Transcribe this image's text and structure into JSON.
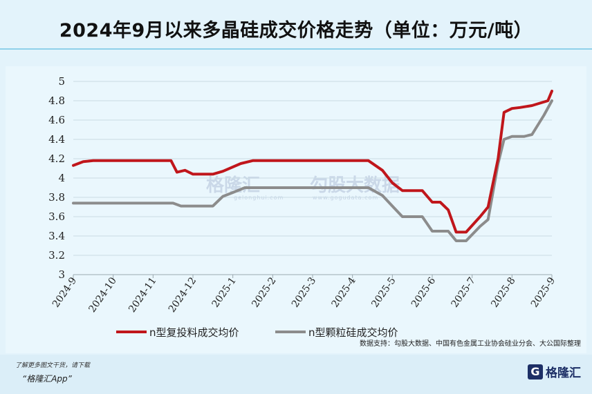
{
  "title": "2024年9月以来多晶硅成交价格走势（单位：万元/吨）",
  "source": "数据支持：勾股大数据、中国有色金属工业协会硅业分会、大公国际整理",
  "watermarks": {
    "left": "格隆汇",
    "left_sub": "gelonghui.com",
    "right": "勾股大数据",
    "right_sub": "www.gogudata.com"
  },
  "footer": {
    "tip": "了解更多图文干货，请下载",
    "app": "“格隆汇App”",
    "logo_mark": "G",
    "logo_name": "格隆汇"
  },
  "colors": {
    "series1": "#c0161b",
    "series2": "#8c8c8c",
    "grid": "#c9dbe4",
    "background": "#e3f3fb"
  },
  "chart_data": {
    "type": "line",
    "title": "2024年9月以来多晶硅成交价格走势（单位：万元/吨）",
    "xlabel": "",
    "ylabel": "",
    "ylim": [
      3,
      5
    ],
    "yticks": [
      "3",
      "3.2",
      "3.4",
      "3.6",
      "3.8",
      "4",
      "4.2",
      "4.4",
      "4.6",
      "4.8",
      "5"
    ],
    "categories": [
      "2024-9",
      "2024-10",
      "2024-11",
      "2024-12",
      "2025-1",
      "2025-2",
      "2025-3",
      "2025-4",
      "2025-5",
      "2025-6",
      "2025-7",
      "2025-8",
      "2025-9"
    ],
    "grid": true,
    "legend_position": "bottom",
    "series": [
      {
        "name": "n型复投料成交均价",
        "color": "#c0161b",
        "points": [
          [
            0,
            4.13
          ],
          [
            0.25,
            4.17
          ],
          [
            0.5,
            4.18
          ],
          [
            1.0,
            4.18
          ],
          [
            2.0,
            4.18
          ],
          [
            2.45,
            4.18
          ],
          [
            2.6,
            4.06
          ],
          [
            2.8,
            4.08
          ],
          [
            3.0,
            4.04
          ],
          [
            3.5,
            4.04
          ],
          [
            3.75,
            4.07
          ],
          [
            4.2,
            4.15
          ],
          [
            4.5,
            4.18
          ],
          [
            5.0,
            4.18
          ],
          [
            6.0,
            4.18
          ],
          [
            7.0,
            4.18
          ],
          [
            7.4,
            4.18
          ],
          [
            7.75,
            4.08
          ],
          [
            8.0,
            3.95
          ],
          [
            8.25,
            3.87
          ],
          [
            8.75,
            3.87
          ],
          [
            9.0,
            3.75
          ],
          [
            9.2,
            3.75
          ],
          [
            9.4,
            3.67
          ],
          [
            9.6,
            3.44
          ],
          [
            9.85,
            3.44
          ],
          [
            10.2,
            3.6
          ],
          [
            10.4,
            3.7
          ],
          [
            10.65,
            4.2
          ],
          [
            10.8,
            4.68
          ],
          [
            11.0,
            4.72
          ],
          [
            11.2,
            4.73
          ],
          [
            11.5,
            4.75
          ],
          [
            11.9,
            4.8
          ],
          [
            12.0,
            4.9
          ]
        ]
      },
      {
        "name": "n型颗粒硅成交均价",
        "color": "#8c8c8c",
        "points": [
          [
            0,
            3.74
          ],
          [
            0.5,
            3.74
          ],
          [
            1.0,
            3.74
          ],
          [
            2.0,
            3.74
          ],
          [
            2.5,
            3.74
          ],
          [
            2.7,
            3.71
          ],
          [
            3.0,
            3.71
          ],
          [
            3.5,
            3.71
          ],
          [
            3.75,
            3.81
          ],
          [
            4.0,
            3.85
          ],
          [
            4.3,
            3.9
          ],
          [
            5.0,
            3.9
          ],
          [
            6.0,
            3.9
          ],
          [
            7.0,
            3.9
          ],
          [
            7.4,
            3.9
          ],
          [
            7.75,
            3.82
          ],
          [
            8.0,
            3.71
          ],
          [
            8.25,
            3.6
          ],
          [
            8.75,
            3.6
          ],
          [
            9.0,
            3.45
          ],
          [
            9.4,
            3.45
          ],
          [
            9.6,
            3.35
          ],
          [
            9.85,
            3.35
          ],
          [
            10.2,
            3.5
          ],
          [
            10.4,
            3.57
          ],
          [
            10.65,
            4.15
          ],
          [
            10.8,
            4.4
          ],
          [
            11.0,
            4.43
          ],
          [
            11.3,
            4.43
          ],
          [
            11.5,
            4.45
          ],
          [
            11.8,
            4.65
          ],
          [
            12.0,
            4.8
          ]
        ]
      }
    ]
  }
}
